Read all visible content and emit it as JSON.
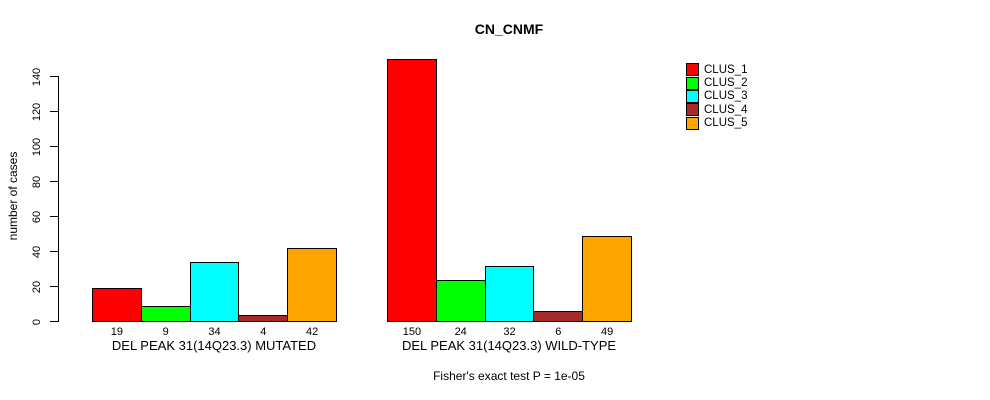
{
  "chart_data": {
    "type": "bar",
    "title": "CN_CNMF",
    "ylabel": "number of cases",
    "xlabel": "",
    "ylim": [
      0,
      140
    ],
    "yticks": [
      0,
      20,
      40,
      60,
      80,
      100,
      120,
      140
    ],
    "grid": false,
    "legend_position": "top-right",
    "groups": [
      "DEL PEAK 31(14Q23.3) MUTATED",
      "DEL PEAK 31(14Q23.3) WILD-TYPE"
    ],
    "series": [
      {
        "name": "CLUS_1",
        "color": "#FF0000",
        "values": [
          19,
          150
        ]
      },
      {
        "name": "CLUS_2",
        "color": "#00FF00",
        "values": [
          9,
          24
        ]
      },
      {
        "name": "CLUS_3",
        "color": "#00FFFF",
        "values": [
          34,
          32
        ]
      },
      {
        "name": "CLUS_4",
        "color": "#A52A2A",
        "values": [
          4,
          6
        ]
      },
      {
        "name": "CLUS_5",
        "color": "#FFA500",
        "values": [
          42,
          49
        ]
      }
    ],
    "bar_value_labels_shown": true,
    "annotation": "Fisher's exact test P = 1e-05"
  }
}
